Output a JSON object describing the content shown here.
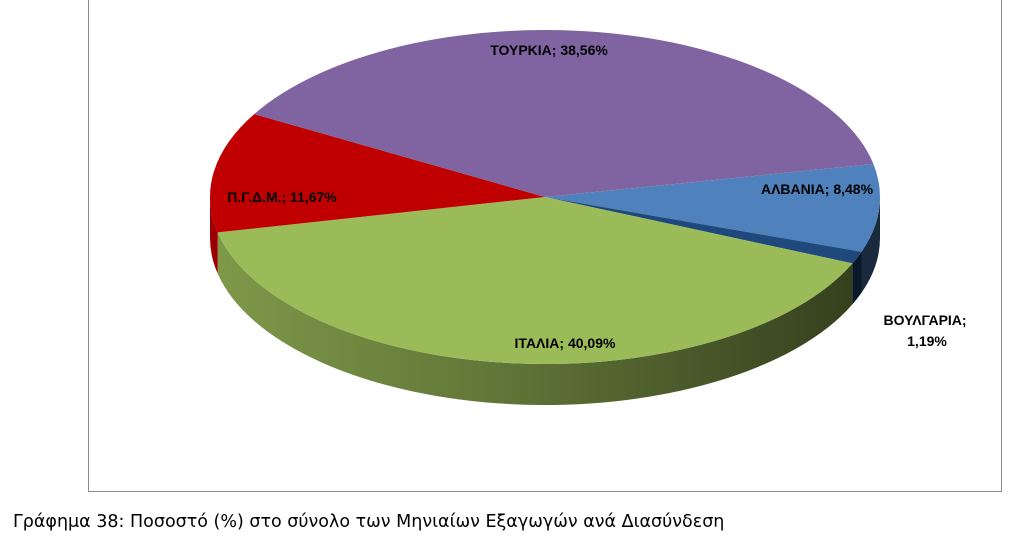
{
  "caption": "Γράφημα 38: Ποσοστό (%) στο σύνολο των Μηνιαίων Εξαγωγών ανά Διασύνδεση",
  "chart_data": {
    "type": "pie",
    "title": "",
    "legend": "none",
    "unit": "%",
    "slices": [
      {
        "name": "ΑΛΒΑΝΙΑ",
        "value": 8.48,
        "label": "ΑΛΒΑΝΙΑ; 8,48%",
        "color": "#4F81BD"
      },
      {
        "name": "ΒΟΥΛΓΑΡΙΑ",
        "value": 1.19,
        "label_line1": "ΒΟΥΛΓΑΡΙΑ;",
        "label_line2": "1,19%",
        "color": "#1F497D"
      },
      {
        "name": "ΙΤΑΛΙΑ",
        "value": 40.09,
        "label": "ΙΤΑΛΙΑ; 40,09%",
        "color": "#9BBB59"
      },
      {
        "name": "Π.Γ.Δ.Μ.",
        "value": 11.67,
        "label": "Π.Γ.Δ.Μ.; 11,67%",
        "color": "#C00000"
      },
      {
        "name": "ΤΟΥΡΚΙΑ",
        "value": 38.56,
        "label": "ΤΟΥΡΚΙΑ; 38,56%",
        "color": "#8064A2"
      }
    ]
  }
}
